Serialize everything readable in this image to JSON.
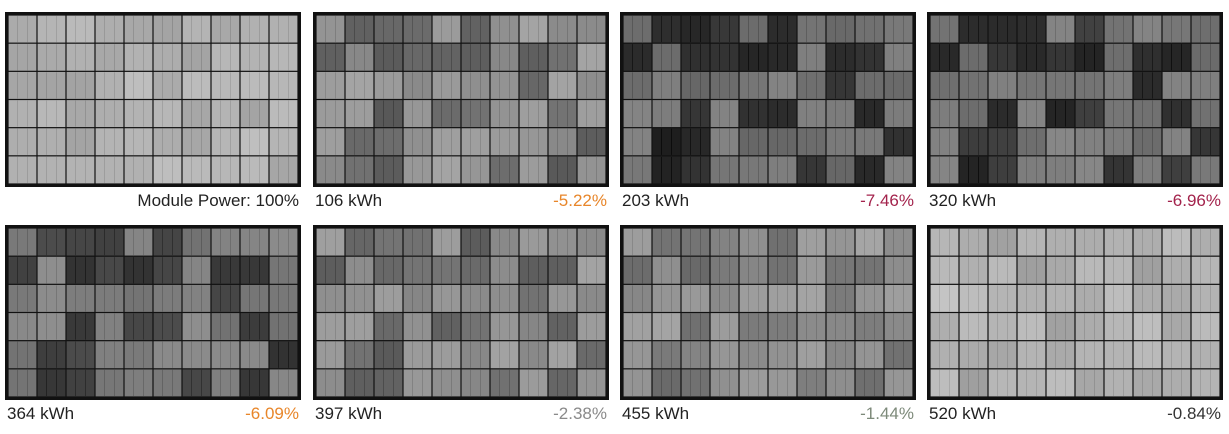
{
  "panels": [
    {
      "caption": "Module Power: 100%"
    },
    {
      "energy": "106 kWh",
      "change": "-5.22%",
      "change_color": "#e8862a"
    },
    {
      "energy": "203 kWh",
      "change": "-7.46%",
      "change_color": "#a3234c"
    },
    {
      "energy": "320 kWh",
      "change": "-6.96%",
      "change_color": "#a3234c"
    },
    {
      "energy": "364 kWh",
      "change": "-6.09%",
      "change_color": "#e8862a"
    },
    {
      "energy": "397 kWh",
      "change": "-2.38%",
      "change_color": "#8a8a8a"
    },
    {
      "energy": "455 kWh",
      "change": "-1.44%",
      "change_color": "#7d8a7a"
    },
    {
      "energy": "520 kWh",
      "change": "-0.84%",
      "change_color": "#333333"
    }
  ]
}
